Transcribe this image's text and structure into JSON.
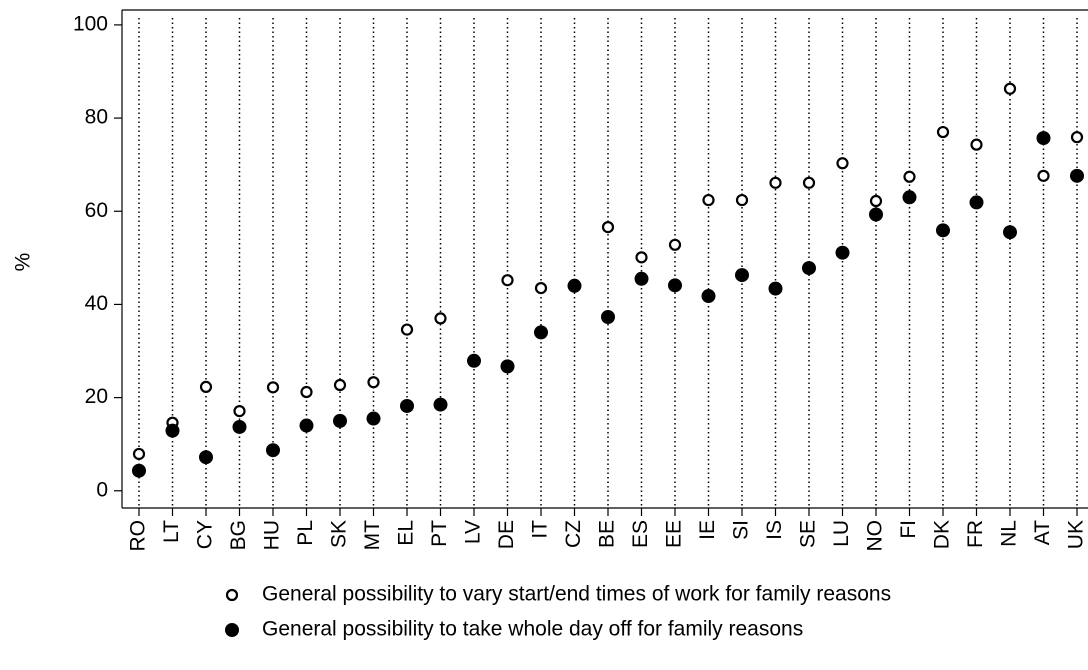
{
  "chart_data": {
    "type": "dot",
    "y_label": "%",
    "categories": [
      "RO",
      "LT",
      "CY",
      "BG",
      "HU",
      "PL",
      "SK",
      "MT",
      "EL",
      "PT",
      "LV",
      "DE",
      "IT",
      "CZ",
      "BE",
      "ES",
      "EE",
      "IE",
      "SI",
      "IS",
      "SE",
      "LU",
      "NO",
      "FI",
      "DK",
      "FR",
      "NL",
      "AT",
      "UK"
    ],
    "series": [
      {
        "name": "General possibility to vary start/end times of work for family reasons",
        "color": "#000000",
        "marker": "open",
        "values": [
          7.9,
          14.6,
          22.3,
          17.1,
          22.2,
          21.2,
          22.7,
          23.3,
          34.6,
          37.0,
          null,
          45.2,
          43.5,
          44.2,
          56.6,
          50.1,
          52.8,
          62.4,
          62.4,
          66.1,
          66.1,
          70.3,
          62.2,
          67.4,
          77.0,
          74.3,
          86.3,
          67.6,
          75.9
        ]
      },
      {
        "name": "General possibility to take whole day off for family reasons",
        "color": "#000000",
        "marker": "filled",
        "values": [
          4.3,
          12.9,
          7.2,
          13.7,
          8.7,
          14.0,
          15.0,
          15.5,
          18.2,
          18.5,
          27.9,
          26.7,
          34.0,
          44.0,
          37.3,
          45.5,
          44.1,
          41.8,
          46.3,
          43.4,
          47.8,
          51.1,
          59.3,
          63.0,
          55.9,
          61.9,
          55.5,
          75.7,
          67.6
        ]
      }
    ],
    "ylim": [
      -3.7,
      103.2
    ],
    "yticks": [
      0,
      20,
      40,
      60,
      80,
      100
    ]
  }
}
